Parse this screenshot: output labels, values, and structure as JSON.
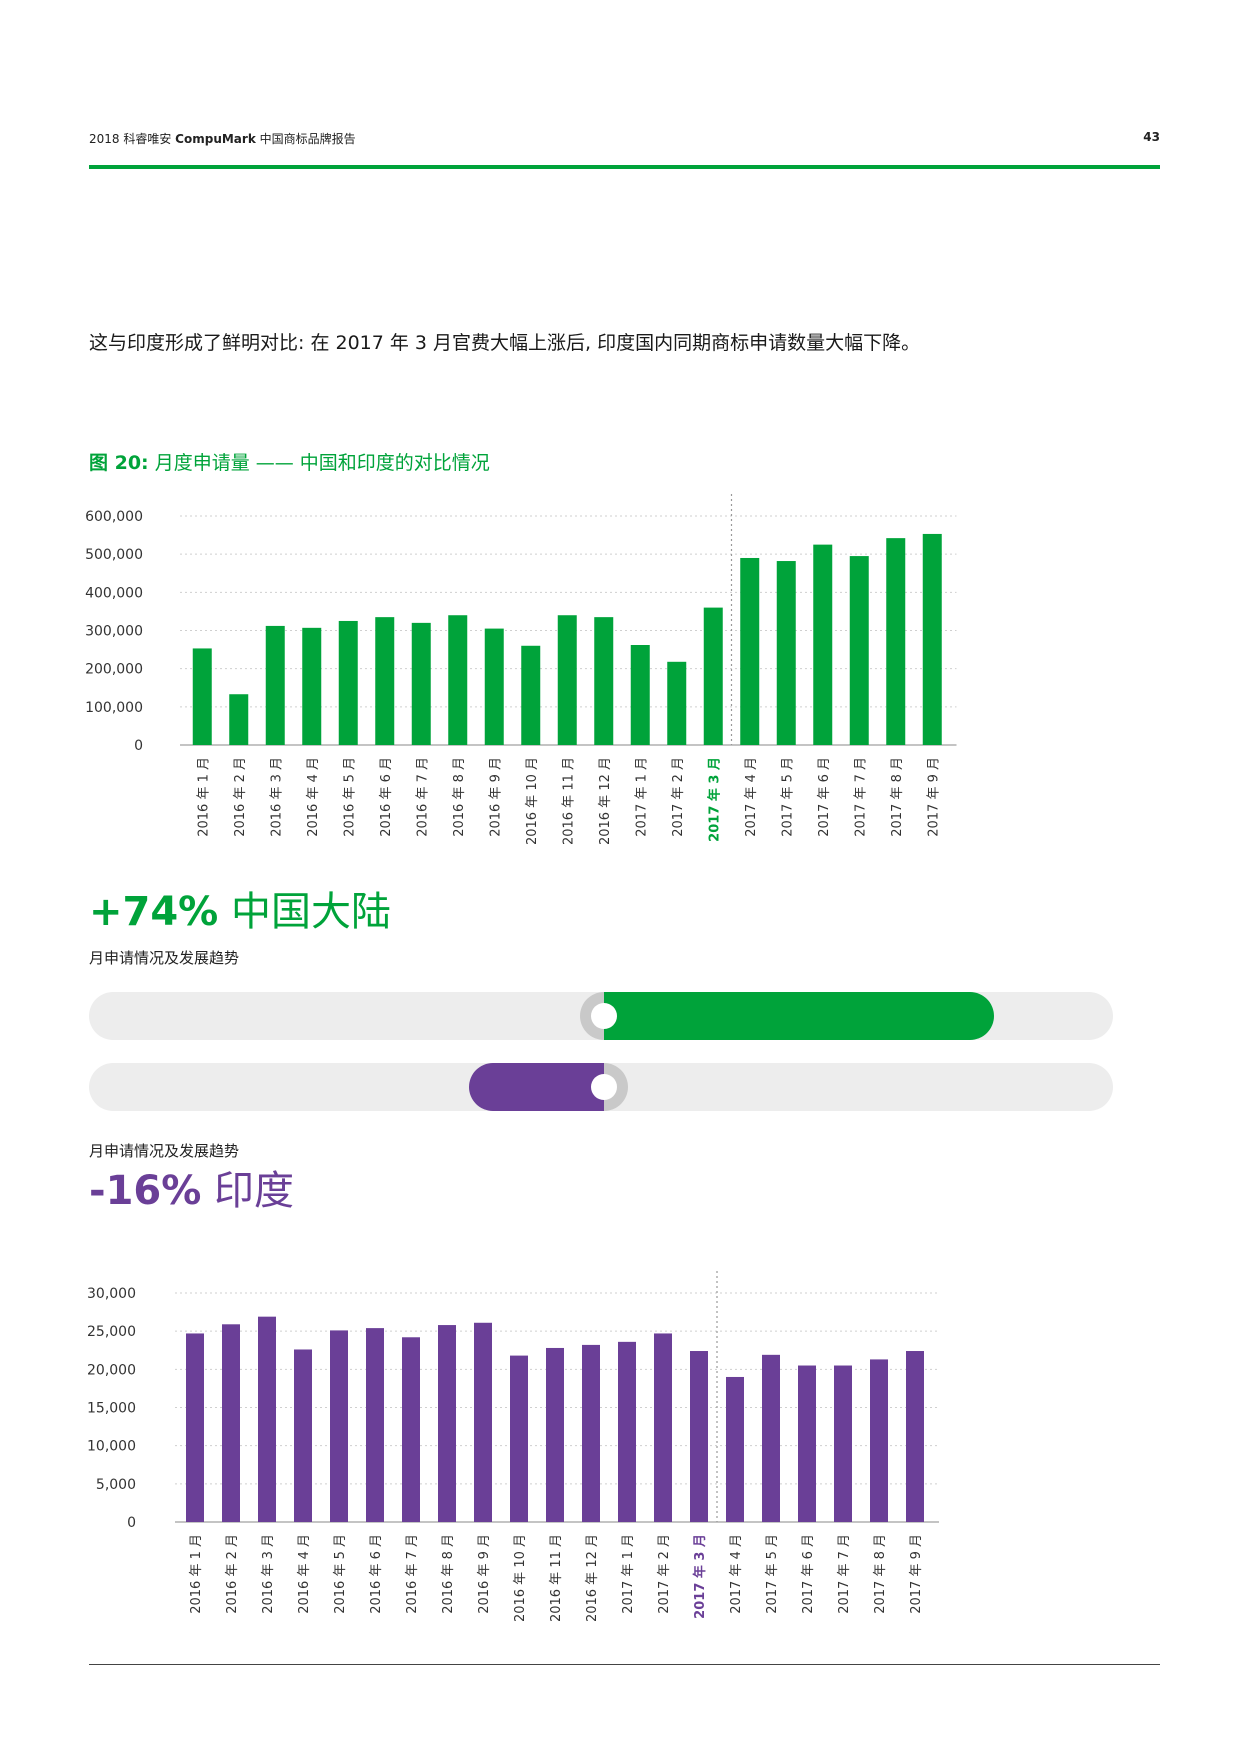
{
  "header": {
    "prefix": "2018 科睿唯安 ",
    "brand": "CompuMark",
    "suffix": " 中国商标品牌报告",
    "page_number": "43"
  },
  "intro_text": "这与印度形成了鲜明对比: 在 2017 年 3 月官费大幅上涨后, 印度国内同期商标申请数量大幅下降。",
  "figure": {
    "label": "图 20:",
    "title": " 月度申请量 —— 中国和印度的对比情况"
  },
  "colors": {
    "china": "#00a33a",
    "india": "#6a3f97",
    "track": "#ededed",
    "knob_ring": "#c9c9c9"
  },
  "china_stat": {
    "pct": "+74%",
    "region": " 中国大陆",
    "subtitle": "月申请情况及发展趋势",
    "bar_fraction": 0.74
  },
  "india_stat": {
    "pct": "-16%",
    "region": " 印度",
    "subtitle": "月申请情况及发展趋势",
    "bar_fraction": 0.16
  },
  "chart_data": [
    {
      "type": "bar",
      "title": "",
      "xlabel": "",
      "ylabel": "",
      "ylim": [
        0,
        600000
      ],
      "yticks": [
        "0",
        "100,000",
        "200,000",
        "300,000",
        "400,000",
        "500,000",
        "600,000"
      ],
      "highlight_category": "2017 年 3 月",
      "categories": [
        "2016 年 1 月",
        "2016 年 2 月",
        "2016 年 3 月",
        "2016 年 4 月",
        "2016 年 5 月",
        "2016 年 6 月",
        "2016 年 7 月",
        "2016 年 8 月",
        "2016 年 9 月",
        "2016 年 10 月",
        "2016 年 11 月",
        "2016 年 12 月",
        "2017 年 1 月",
        "2017 年 2 月",
        "2017 年 3 月",
        "2017 年 4 月",
        "2017 年 5 月",
        "2017 年 6 月",
        "2017 年 7 月",
        "2017 年 8 月",
        "2017 年 9 月"
      ],
      "values": [
        253000,
        133000,
        312000,
        307000,
        325000,
        335000,
        320000,
        340000,
        305000,
        260000,
        340000,
        335000,
        262000,
        218000,
        360000,
        490000,
        482000,
        525000,
        495000,
        542000,
        553000
      ],
      "color": "#00a33a",
      "grid": true
    },
    {
      "type": "bar",
      "title": "",
      "xlabel": "",
      "ylabel": "",
      "ylim": [
        0,
        30000
      ],
      "yticks": [
        "0",
        "5,000",
        "10,000",
        "15,000",
        "20,000",
        "25,000",
        "30,000"
      ],
      "highlight_category": "2017 年 3 月",
      "categories": [
        "2016 年 1 月",
        "2016 年 2 月",
        "2016 年 3 月",
        "2016 年 4 月",
        "2016 年 5 月",
        "2016 年 6 月",
        "2016 年 7 月",
        "2016 年 8 月",
        "2016 年 9 月",
        "2016 年 10 月",
        "2016 年 11 月",
        "2016 年 12 月",
        "2017 年 1 月",
        "2017 年 2 月",
        "2017 年 3 月",
        "2017 年 4 月",
        "2017 年 5 月",
        "2017 年 6 月",
        "2017 年 7 月",
        "2017 年 8 月",
        "2017 年 9 月"
      ],
      "values": [
        24700,
        25900,
        26900,
        22600,
        25100,
        25400,
        24200,
        25800,
        26100,
        21800,
        22800,
        23200,
        23600,
        24700,
        22400,
        19000,
        21900,
        20500,
        20500,
        21300,
        22400
      ],
      "color": "#6a3f97",
      "grid": true
    }
  ]
}
